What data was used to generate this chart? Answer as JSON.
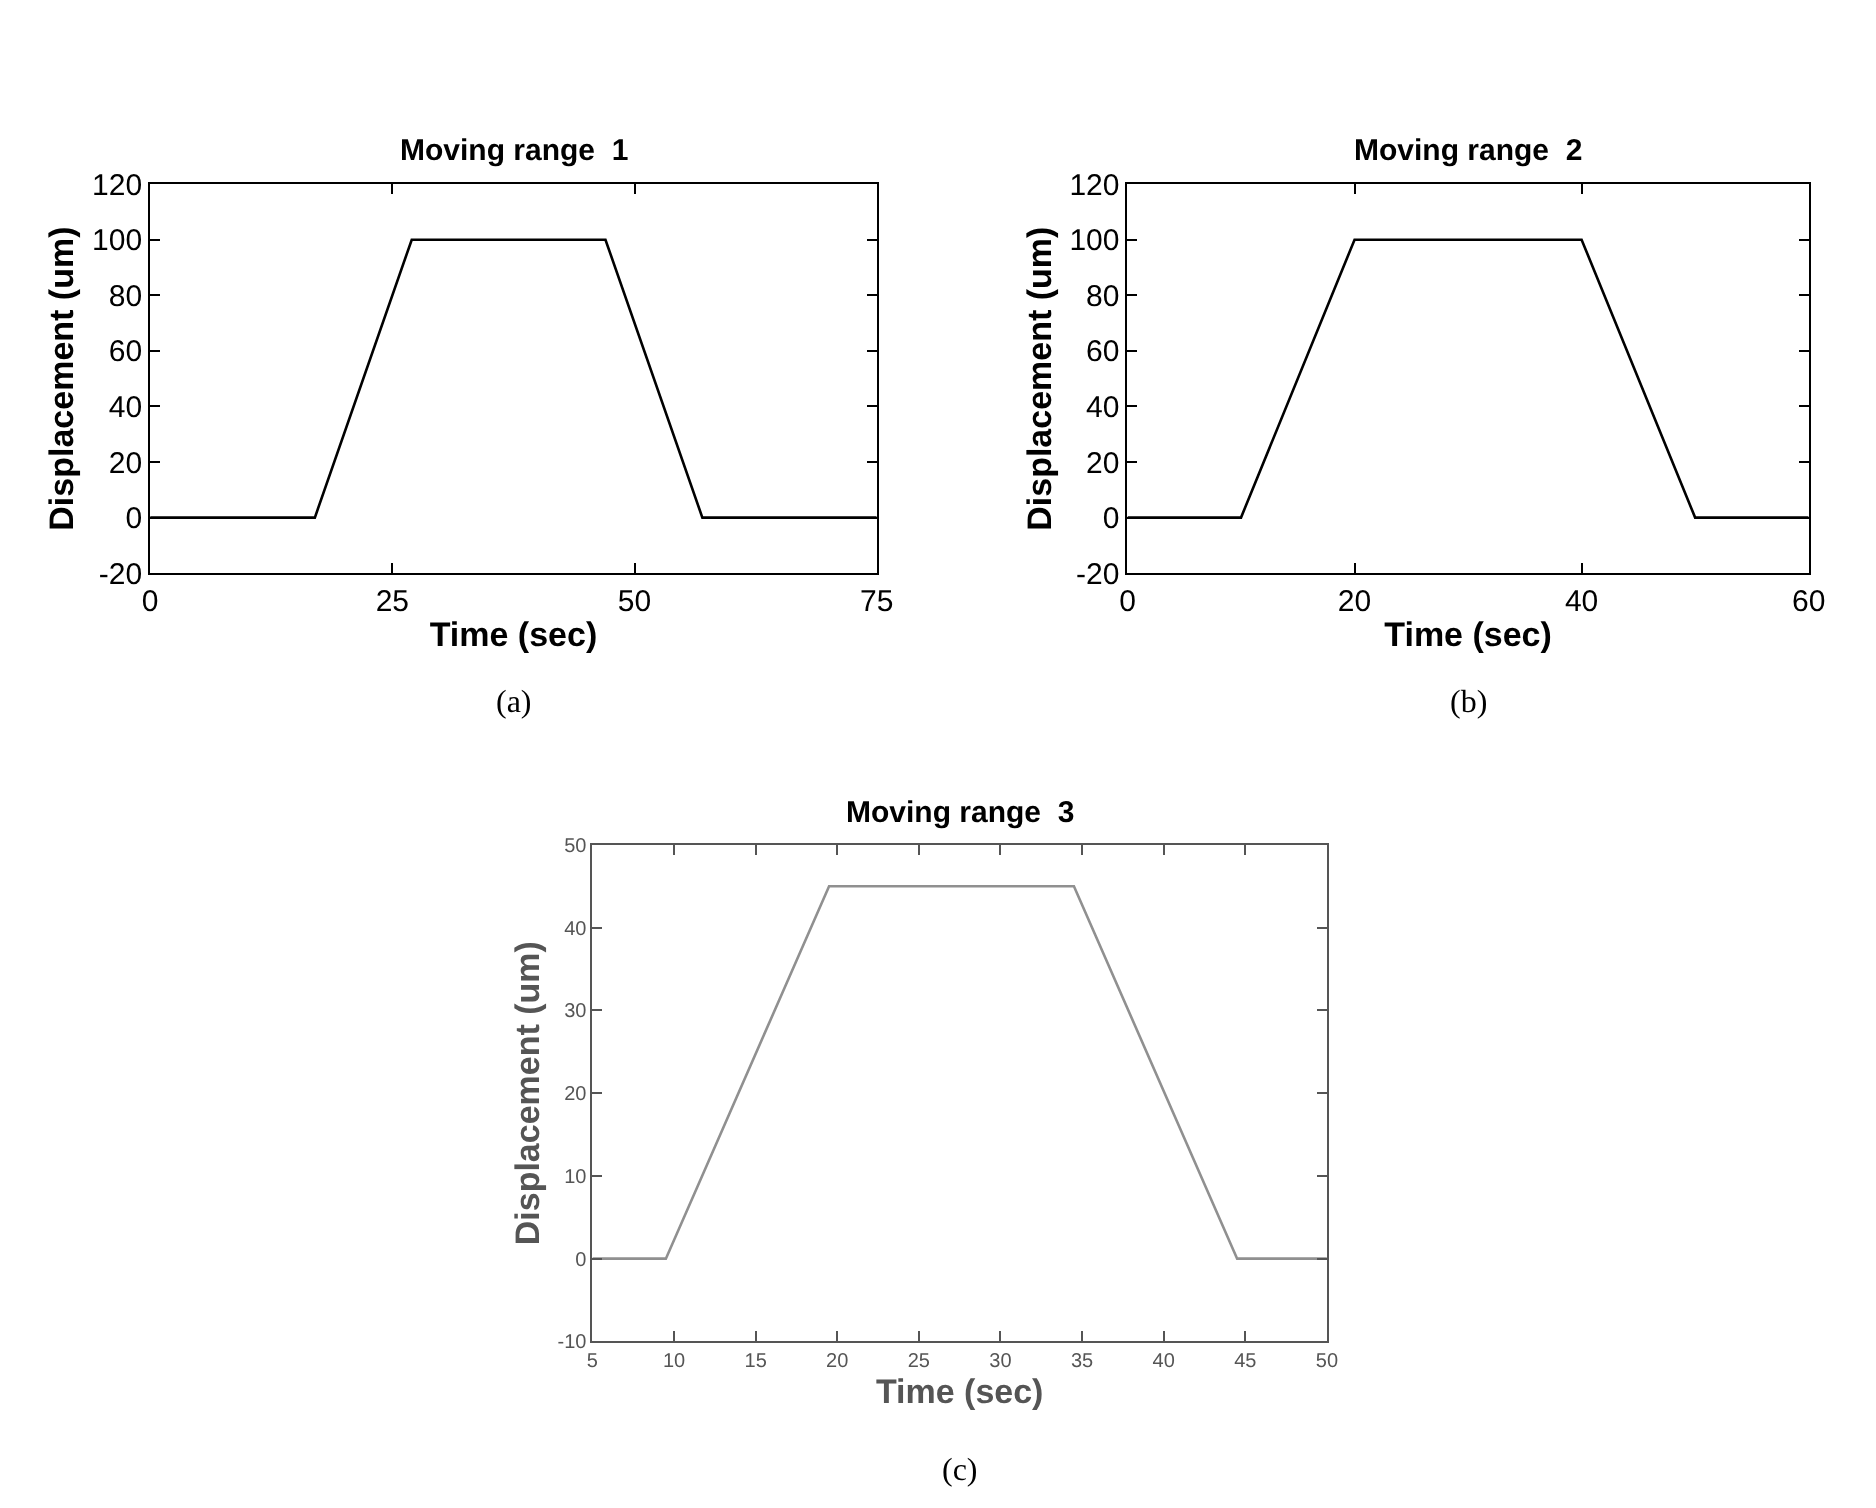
{
  "chart_data": [
    {
      "type": "line",
      "title": "Moving range  1",
      "xlabel": "Time (sec)",
      "ylabel": "Displacement (um)",
      "x": [
        0,
        17,
        27,
        47,
        57,
        75
      ],
      "series": [
        {
          "color": "#000000",
          "values": [
            0,
            0,
            100,
            100,
            0,
            0
          ]
        }
      ],
      "xlim": [
        0,
        75
      ],
      "xticks": [
        0,
        25,
        50,
        75
      ],
      "ylim": [
        -20,
        120
      ],
      "yticks": [
        -20,
        0,
        20,
        40,
        60,
        80,
        100,
        120
      ],
      "annotations": [
        "(a)"
      ]
    },
    {
      "type": "line",
      "title": "Moving range  2",
      "xlabel": "Time (sec)",
      "ylabel": "Displacement (um)",
      "x": [
        0,
        10,
        20,
        40,
        50,
        60
      ],
      "series": [
        {
          "color": "#000000",
          "values": [
            0,
            0,
            100,
            100,
            0,
            0
          ]
        }
      ],
      "xlim": [
        0,
        60
      ],
      "xticks": [
        0,
        20,
        40,
        60
      ],
      "ylim": [
        -20,
        120
      ],
      "yticks": [
        -20,
        0,
        20,
        40,
        60,
        80,
        100,
        120
      ],
      "annotations": [
        "(b)"
      ]
    },
    {
      "type": "line",
      "title": "Moving range  3",
      "xlabel": "Time (sec)",
      "ylabel": "Displacement (um)",
      "x": [
        5,
        9.5,
        19.5,
        34.5,
        44.5,
        50
      ],
      "series": [
        {
          "color": "#909090",
          "values": [
            0,
            0,
            45,
            45,
            0,
            0
          ]
        }
      ],
      "xlim": [
        5,
        50
      ],
      "xticks": [
        5,
        10,
        15,
        20,
        25,
        30,
        35,
        40,
        45,
        50
      ],
      "ylim": [
        -10,
        50
      ],
      "yticks": [
        -10,
        0,
        10,
        20,
        30,
        40,
        50
      ],
      "annotations": [
        "(c)"
      ]
    }
  ]
}
